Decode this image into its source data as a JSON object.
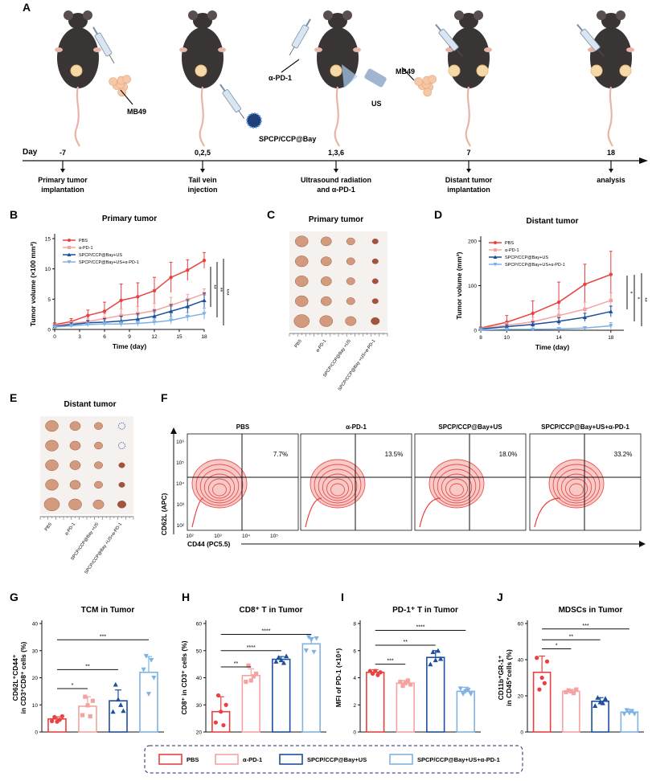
{
  "panels": {
    "A": "A",
    "B": "B",
    "C": "C",
    "D": "D",
    "E": "E",
    "F": "F",
    "G": "G",
    "H": "H",
    "I": "I",
    "J": "J"
  },
  "timeline": {
    "axis_label": "Day",
    "ticks": [
      {
        "day": "-7",
        "desc1": "Primary tumor",
        "desc2": "implantation"
      },
      {
        "day": "0,2,5",
        "desc1": "Tail vein",
        "desc2": "injection"
      },
      {
        "day": "1,3,6",
        "desc1": "Ultrasound radiation",
        "desc2": "and α-PD-1"
      },
      {
        "day": "7",
        "desc1": "Distant tumor",
        "desc2": "implantation"
      },
      {
        "day": "18",
        "desc1": "analysis",
        "desc2": ""
      }
    ],
    "labels": {
      "mb49_a": "MB49",
      "mb49_b": "MB49",
      "drug": "SPCP/CCP@Bay",
      "apd1": "α-PD-1",
      "us": "US"
    }
  },
  "colors": {
    "pbs": "#e8413f",
    "apd1": "#f5a3a0",
    "spcp": "#1c4f9c",
    "combo": "#7fb2e3",
    "mouse": "#3a3535"
  },
  "groups": [
    "PBS",
    "α-PD-1",
    "SPCP/CCP@Bay+US",
    "SPCP/CCP@Bay+US+α-PD-1"
  ],
  "photo_c": {
    "title": "Primary tumor",
    "labels": [
      "PBS",
      "α-PD-1",
      "SPCP/CCP@Bay +US",
      "SPCP/CCP@Bay +US+α-PD-1"
    ]
  },
  "photo_e": {
    "title": "Distant tumor",
    "labels": [
      "PBS",
      "α-PD-1",
      "SPCP/CCP@Bay +US",
      "SPCP/CCP@Bay +US+α-PD-1"
    ]
  },
  "flow": {
    "titles": [
      "PBS",
      "α-PD-1",
      "SPCP/CCP@Bay+US",
      "SPCP/CCP@Bay+US+α-PD-1"
    ],
    "percents": [
      "7.7%",
      "13.5%",
      "18.0%",
      "33.2%"
    ],
    "ylabel": "CD62L (APC)",
    "xlabel": "CD44 (PC5.5)",
    "yticks": [
      "10⁶",
      "10⁵",
      "10⁴",
      "10³",
      "10²"
    ],
    "xticks": [
      "10²",
      "10³",
      "10⁴",
      "10⁵"
    ]
  },
  "legend_bottom": [
    "PBS",
    "α-PD-1",
    "SPCP/CCP@Bay+US",
    "SPCP/CCP@Bay+US+α-PD-1"
  ],
  "chart_data": [
    {
      "id": "B",
      "type": "line",
      "title": "Primary tumor",
      "xlabel": "Time (day)",
      "ylabel": "Tumor volume (×100 mm³)",
      "x": [
        0,
        2,
        4,
        6,
        8,
        10,
        12,
        14,
        16,
        18
      ],
      "xticks": [
        0,
        3,
        6,
        9,
        12,
        15,
        18
      ],
      "xlim": [
        0,
        18
      ],
      "ylim": [
        0,
        15
      ],
      "yticks": [
        0,
        5,
        10,
        15
      ],
      "series": [
        {
          "name": "PBS",
          "values": [
            0.8,
            1.3,
            2.3,
            3.0,
            4.8,
            5.4,
            6.4,
            8.6,
            9.8,
            11.4
          ],
          "err": [
            0.3,
            0.5,
            0.9,
            1.5,
            2.7,
            2.3,
            2.2,
            2.5,
            1.7,
            1.3
          ]
        },
        {
          "name": "α-PD-1",
          "values": [
            0.6,
            1.0,
            1.3,
            1.8,
            2.3,
            2.6,
            3.1,
            4.0,
            4.9,
            5.9
          ],
          "err": [
            0.2,
            0.3,
            0.5,
            0.8,
            1.1,
            1.2,
            1.2,
            1.3,
            0.9,
            0.8
          ]
        },
        {
          "name": "SPCP/CCP@Bay+US",
          "values": [
            0.5,
            0.8,
            1.1,
            1.2,
            1.4,
            1.7,
            2.2,
            3.0,
            3.8,
            4.8
          ],
          "err": [
            0.2,
            0.3,
            0.4,
            0.6,
            0.8,
            0.9,
            1.0,
            1.1,
            1.1,
            1.2
          ]
        },
        {
          "name": "SPCP/CCP@Bay+US+α-PD-1",
          "values": [
            0.4,
            0.6,
            0.8,
            0.9,
            0.9,
            1.0,
            1.2,
            1.5,
            2.1,
            2.6
          ],
          "err": [
            0.2,
            0.2,
            0.3,
            0.3,
            0.4,
            0.4,
            0.5,
            0.6,
            0.7,
            0.9
          ]
        }
      ],
      "sig": [
        "**",
        "**",
        "***"
      ]
    },
    {
      "id": "D",
      "type": "line",
      "title": "Distant tumor",
      "xlabel": "Time (day)",
      "ylabel": "Tumor volume (mm³)",
      "x": [
        8,
        10,
        12,
        14,
        16,
        18
      ],
      "xticks": [
        8,
        10,
        14,
        18
      ],
      "xlim": [
        8,
        19
      ],
      "ylim": [
        0,
        200
      ],
      "yticks": [
        0,
        100,
        200
      ],
      "series": [
        {
          "name": "PBS",
          "values": [
            5,
            18,
            38,
            63,
            103,
            125
          ],
          "err": [
            3,
            15,
            28,
            45,
            45,
            52
          ]
        },
        {
          "name": "α-PD-1",
          "values": [
            4,
            11,
            19,
            33,
            47,
            67
          ],
          "err": [
            2,
            6,
            10,
            15,
            16,
            17
          ]
        },
        {
          "name": "SPCP/CCP@Bay+US",
          "values": [
            3,
            8,
            13,
            20,
            29,
            42
          ],
          "err": [
            2,
            4,
            6,
            8,
            9,
            12
          ]
        },
        {
          "name": "SPCP/CCP@Bay+US+α-PD-1",
          "values": [
            1,
            2,
            2,
            3,
            5,
            10
          ],
          "err": [
            1,
            1,
            1,
            2,
            3,
            7
          ]
        }
      ],
      "sig": [
        "*",
        "*",
        "**"
      ]
    },
    {
      "id": "G",
      "type": "bar",
      "title": "TCM in Tumor",
      "ylabel": "CD62L⁺CD44⁺ in CD3⁺CD8⁺ cells (%)",
      "categories": [
        "PBS",
        "α-PD-1",
        "SPCP/CCP@Bay+US",
        "SPCP/CCP@Bay+US+α-PD-1"
      ],
      "values": [
        4.8,
        9.5,
        11.5,
        22.0
      ],
      "err": [
        0.8,
        3.5,
        4.0,
        5.8
      ],
      "points": [
        [
          4.0,
          5.5,
          3.8,
          4.5,
          5.8
        ],
        [
          6.2,
          13.0,
          9.8,
          5.8,
          11.5
        ],
        [
          7.5,
          17.5,
          12.0,
          10.0,
          7.8
        ],
        [
          23.0,
          28.0,
          14.0,
          26.5,
          20.0
        ]
      ],
      "ylim": [
        0,
        40
      ],
      "yticks": [
        0,
        10,
        20,
        30,
        40
      ],
      "sig": [
        {
          "a": 0,
          "b": 1,
          "text": "*",
          "y": 16
        },
        {
          "a": 0,
          "b": 2,
          "text": "**",
          "y": 23
        },
        {
          "a": 0,
          "b": 3,
          "text": "***",
          "y": 34
        }
      ]
    },
    {
      "id": "H",
      "type": "bar",
      "title": "CD8⁺ T in Tumor",
      "ylabel": "CD8⁺ in CD3⁺ cells (%)",
      "categories": [
        "PBS",
        "α-PD-1",
        "SPCP/CCP@Bay+US",
        "SPCP/CCP@Bay+US+α-PD-1"
      ],
      "values": [
        27.5,
        40.8,
        46.8,
        52.5
      ],
      "err": [
        5.5,
        2.5,
        1.0,
        2.3
      ],
      "points": [
        [
          23.5,
          33.5,
          27.5,
          22.5,
          30.0
        ],
        [
          38.5,
          44.5,
          39.0,
          40.5,
          41.5
        ],
        [
          46.0,
          47.5,
          46.5,
          45.5,
          48.0
        ],
        [
          50.0,
          55.0,
          54.0,
          49.5,
          54.5
        ]
      ],
      "ylim": [
        20,
        60
      ],
      "yticks": [
        20,
        30,
        40,
        50,
        60
      ],
      "sig": [
        {
          "a": 0,
          "b": 1,
          "text": "**",
          "y": 44
        },
        {
          "a": 0,
          "b": 2,
          "text": "****",
          "y": 50
        },
        {
          "a": 0,
          "b": 3,
          "text": "****",
          "y": 56
        }
      ]
    },
    {
      "id": "I",
      "type": "bar",
      "title": "PD-1⁺ T in Tumor",
      "ylabel": "MFI of PD-1 (×10⁴)",
      "categories": [
        "PBS",
        "α-PD-1",
        "SPCP/CCP@Bay+US",
        "SPCP/CCP@Bay+US+α-PD-1"
      ],
      "values": [
        4.4,
        3.6,
        5.5,
        3.0
      ],
      "err": [
        0.2,
        0.2,
        0.5,
        0.3
      ],
      "points": [
        [
          4.5,
          4.3,
          4.5,
          4.2,
          4.4
        ],
        [
          3.7,
          3.4,
          3.6,
          3.8,
          3.5
        ],
        [
          5.0,
          5.9,
          5.3,
          6.0,
          5.4
        ],
        [
          3.2,
          2.8,
          3.0,
          3.1,
          2.8
        ]
      ],
      "ylim": [
        0,
        8
      ],
      "yticks": [
        0,
        2,
        4,
        6,
        8
      ],
      "sig": [
        {
          "a": 0,
          "b": 1,
          "text": "***",
          "y": 5.0
        },
        {
          "a": 0,
          "b": 2,
          "text": "**",
          "y": 6.4
        },
        {
          "a": 0,
          "b": 3,
          "text": "****",
          "y": 7.5
        }
      ]
    },
    {
      "id": "J",
      "type": "bar",
      "title": "MDSCs in Tumor",
      "ylabel": "CD11b⁺GR-1⁺ in CD45⁺cells (%)",
      "categories": [
        "PBS",
        "α-PD-1",
        "SPCP/CCP@Bay+US",
        "SPCP/CCP@Bay+US+α-PD-1"
      ],
      "values": [
        33.0,
        22.5,
        17.0,
        11.0
      ],
      "err": [
        9.0,
        1.0,
        2.0,
        1.5
      ],
      "points": [
        [
          41.0,
          23.5,
          30.0,
          27.0,
          39.0
        ],
        [
          22.0,
          23.0,
          22.5,
          21.5,
          23.5
        ],
        [
          14.5,
          19.0,
          16.5,
          16.0,
          18.5
        ],
        [
          10.0,
          12.0,
          10.5,
          11.5,
          10.0
        ]
      ],
      "ylim": [
        0,
        60
      ],
      "yticks": [
        0,
        20,
        40,
        60
      ],
      "sig": [
        {
          "a": 0,
          "b": 1,
          "text": "*",
          "y": 46
        },
        {
          "a": 0,
          "b": 2,
          "text": "**",
          "y": 51
        },
        {
          "a": 0,
          "b": 3,
          "text": "***",
          "y": 57
        }
      ]
    }
  ]
}
